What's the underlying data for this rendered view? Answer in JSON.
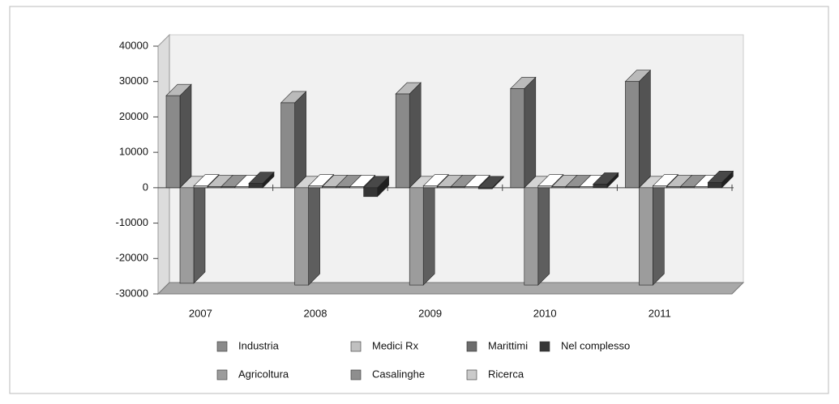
{
  "chart_data": {
    "type": "bar3d",
    "categories": [
      "2007",
      "2008",
      "2009",
      "2010",
      "2011"
    ],
    "series": [
      {
        "name": "Industria",
        "color": "#8a8a8a",
        "values": [
          26000,
          24000,
          26500,
          28000,
          30000
        ]
      },
      {
        "name": "Agricoltura",
        "color": "#9c9c9c",
        "values": [
          -27000,
          -27500,
          -27500,
          -27500,
          -27500
        ]
      },
      {
        "name": "Medici Rx",
        "color": "#c0c0c0",
        "values": [
          500,
          500,
          500,
          500,
          500
        ]
      },
      {
        "name": "Casalinghe",
        "color": "#8e8e8e",
        "values": [
          300,
          300,
          300,
          300,
          300
        ]
      },
      {
        "name": "Marittimi",
        "color": "#6c6c6c",
        "values": [
          300,
          300,
          300,
          300,
          300
        ]
      },
      {
        "name": "Ricerca",
        "color": "#cacaca",
        "values": [
          300,
          300,
          300,
          300,
          300
        ]
      },
      {
        "name": "Nel complesso",
        "color": "#353535",
        "values": [
          1200,
          -2500,
          -300,
          1000,
          1500
        ]
      }
    ],
    "ylim": [
      -30000,
      40000
    ],
    "yticks": [
      -30000,
      -20000,
      -10000,
      0,
      10000,
      20000,
      30000,
      40000
    ]
  }
}
